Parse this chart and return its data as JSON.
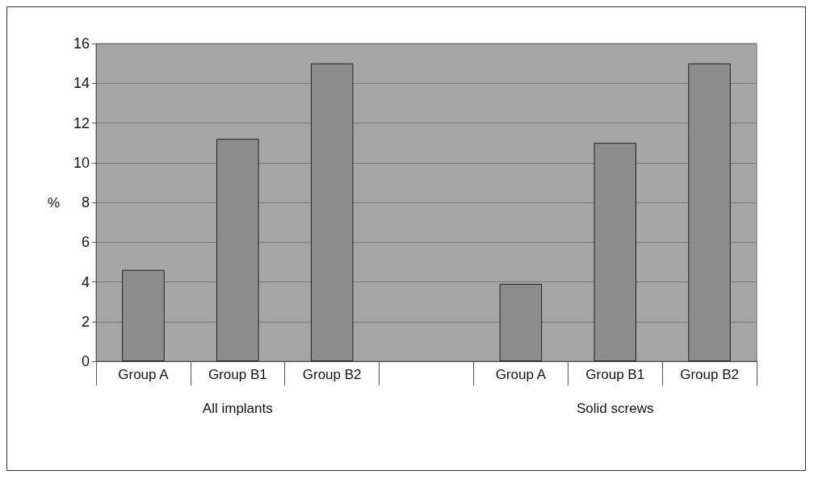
{
  "chart_data": {
    "type": "bar",
    "ylabel": "%",
    "categories": [
      "Group A",
      "Group B1",
      "Group B2",
      null,
      "Group A",
      "Group B1",
      "Group B2"
    ],
    "values": [
      4.6,
      11.2,
      15.0,
      null,
      3.9,
      11.0,
      15.0
    ],
    "color": "#8c8c8c",
    "ylim": [
      0,
      16
    ],
    "yticks": [
      0,
      2,
      4,
      6,
      8,
      10,
      12,
      14,
      16
    ],
    "grid": "y",
    "annotations": [
      "All implants",
      "Solid screws"
    ]
  }
}
